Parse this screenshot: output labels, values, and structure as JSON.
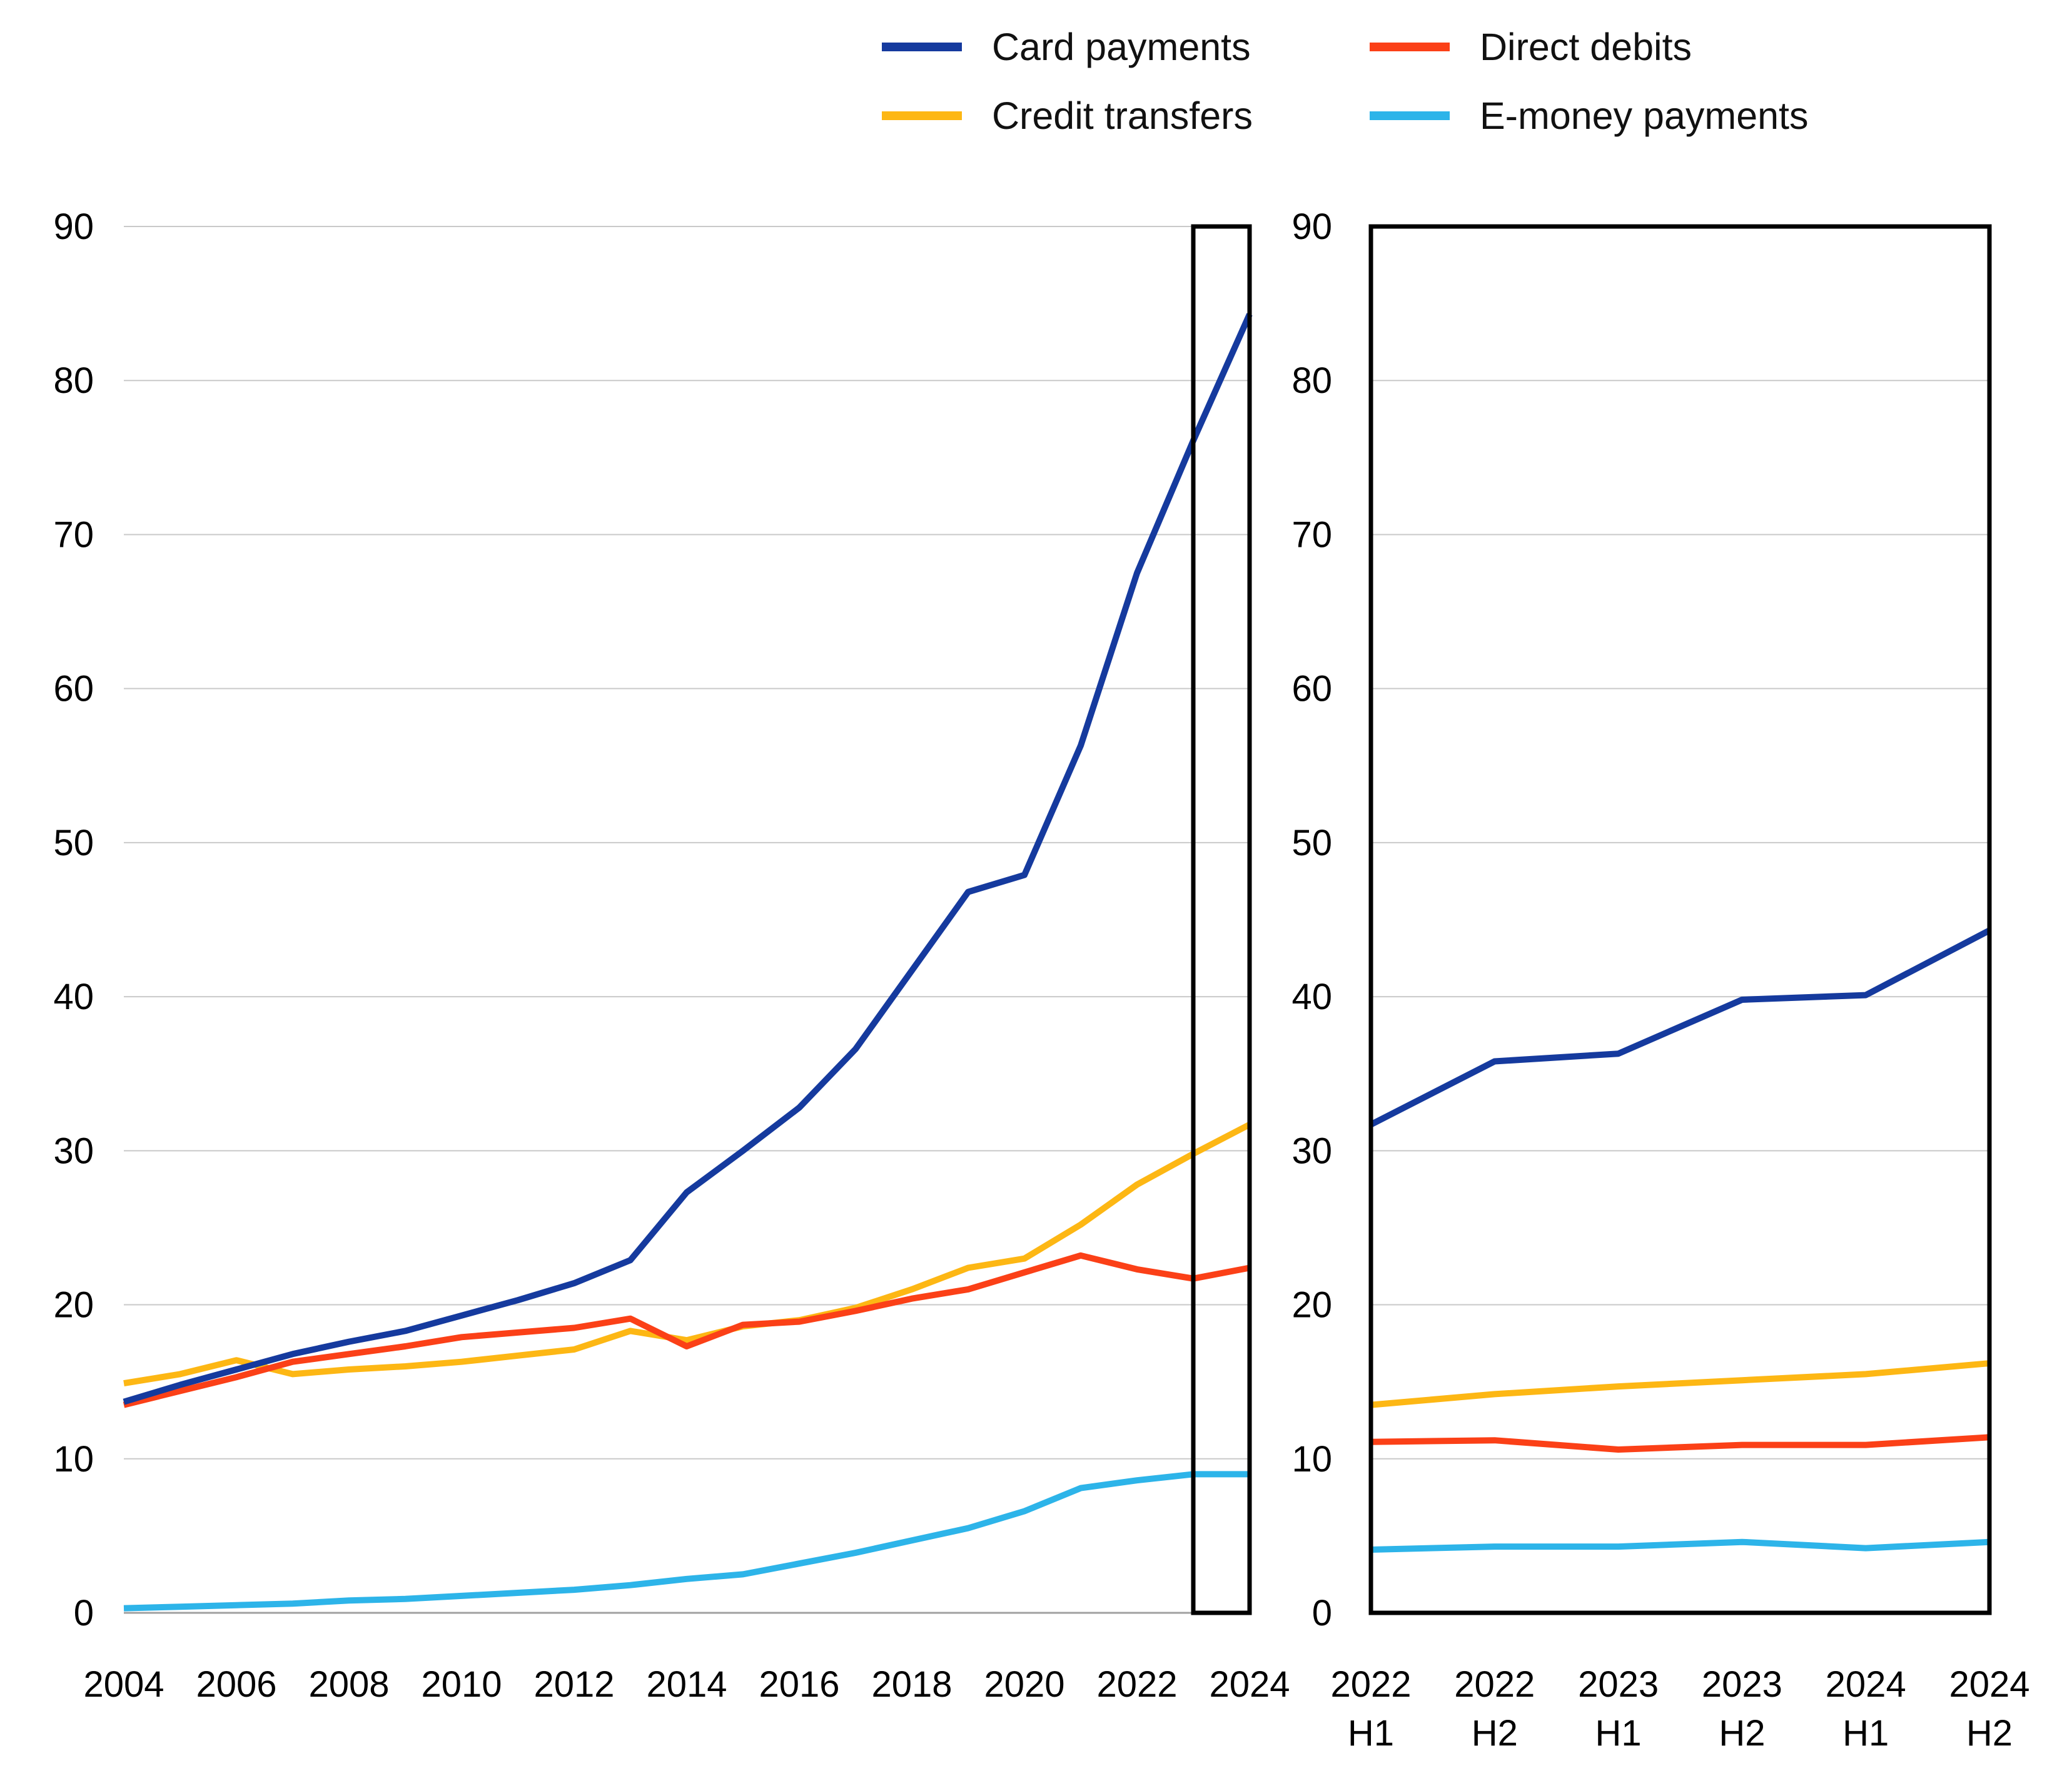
{
  "title": "",
  "legend": {
    "position": "top",
    "items": [
      {
        "id": "card",
        "label": "Card payments",
        "color": "#153a9e"
      },
      {
        "id": "credit",
        "label": "Credit transfers",
        "color": "#fdb714"
      },
      {
        "id": "debit",
        "label": "Direct debits",
        "color": "#fb4017"
      },
      {
        "id": "emoney",
        "label": "E-money payments",
        "color": "#2db4e9"
      }
    ]
  },
  "colors": {
    "gridline": "#c9c9c9",
    "zero_axis": "#a0a0a0",
    "frame": "#000000",
    "tick_text": "#000000",
    "background": "#ffffff"
  },
  "chart_data": [
    {
      "type": "line",
      "title": "",
      "panel": "left-annual",
      "xlabel": "",
      "ylabel": "",
      "ylim": [
        0,
        90
      ],
      "yticks": [
        0,
        10,
        20,
        30,
        40,
        50,
        60,
        70,
        80,
        90
      ],
      "grid": true,
      "categories": [
        2004,
        2005,
        2006,
        2007,
        2008,
        2009,
        2010,
        2011,
        2012,
        2013,
        2014,
        2015,
        2016,
        2017,
        2018,
        2019,
        2020,
        2021,
        2022,
        2023,
        2024
      ],
      "xtick_labels": [
        "2004",
        "2006",
        "2008",
        "2010",
        "2012",
        "2014",
        "2016",
        "2018",
        "2020",
        "2022",
        "2024"
      ],
      "series": [
        {
          "name": "Card payments",
          "color_id": "card",
          "values": [
            13.7,
            14.8,
            15.8,
            16.8,
            17.6,
            18.3,
            19.3,
            20.3,
            21.4,
            22.9,
            27.3,
            30.0,
            32.8,
            36.6,
            41.7,
            46.8,
            47.9,
            56.3,
            67.5,
            76.1,
            84.3
          ]
        },
        {
          "name": "Credit transfers",
          "color_id": "credit",
          "values": [
            14.9,
            15.5,
            16.4,
            15.5,
            15.8,
            16.0,
            16.3,
            16.7,
            17.1,
            18.3,
            17.7,
            18.6,
            19.0,
            19.8,
            21.0,
            22.4,
            23.0,
            25.2,
            27.8,
            29.8,
            31.7
          ]
        },
        {
          "name": "Direct debits",
          "color_id": "debit",
          "values": [
            13.5,
            14.4,
            15.3,
            16.3,
            16.8,
            17.3,
            17.9,
            18.2,
            18.5,
            19.1,
            17.3,
            18.7,
            18.9,
            19.6,
            20.4,
            21.0,
            22.1,
            23.2,
            22.3,
            21.7,
            22.4
          ]
        },
        {
          "name": "E-money payments",
          "color_id": "emoney",
          "values": [
            0.3,
            0.4,
            0.5,
            0.6,
            0.8,
            0.9,
            1.1,
            1.3,
            1.5,
            1.8,
            2.2,
            2.5,
            3.2,
            3.9,
            4.7,
            5.5,
            6.6,
            8.1,
            8.6,
            9.0,
            9.0
          ]
        }
      ],
      "highlight_box": {
        "from_year": 2023,
        "to_year": 2024
      }
    },
    {
      "type": "line",
      "title": "",
      "panel": "right-halfyearly",
      "xlabel": "",
      "ylabel": "",
      "ylim": [
        0,
        90
      ],
      "yticks": [
        0,
        10,
        20,
        30,
        40,
        50,
        60,
        70,
        80,
        90
      ],
      "grid": true,
      "framed": true,
      "categories": [
        "2022 H1",
        "2022 H2",
        "2023 H1",
        "2023 H2",
        "2024 H1",
        "2024 H2"
      ],
      "series": [
        {
          "name": "Card payments",
          "color_id": "card",
          "values": [
            31.7,
            35.8,
            36.3,
            39.8,
            40.1,
            44.3
          ]
        },
        {
          "name": "Credit transfers",
          "color_id": "credit",
          "values": [
            13.5,
            14.2,
            14.7,
            15.1,
            15.5,
            16.2
          ]
        },
        {
          "name": "Direct debits",
          "color_id": "debit",
          "values": [
            11.1,
            11.2,
            10.6,
            10.9,
            10.9,
            11.4
          ]
        },
        {
          "name": "E-money payments",
          "color_id": "emoney",
          "values": [
            4.1,
            4.3,
            4.3,
            4.6,
            4.2,
            4.6
          ]
        }
      ]
    }
  ]
}
